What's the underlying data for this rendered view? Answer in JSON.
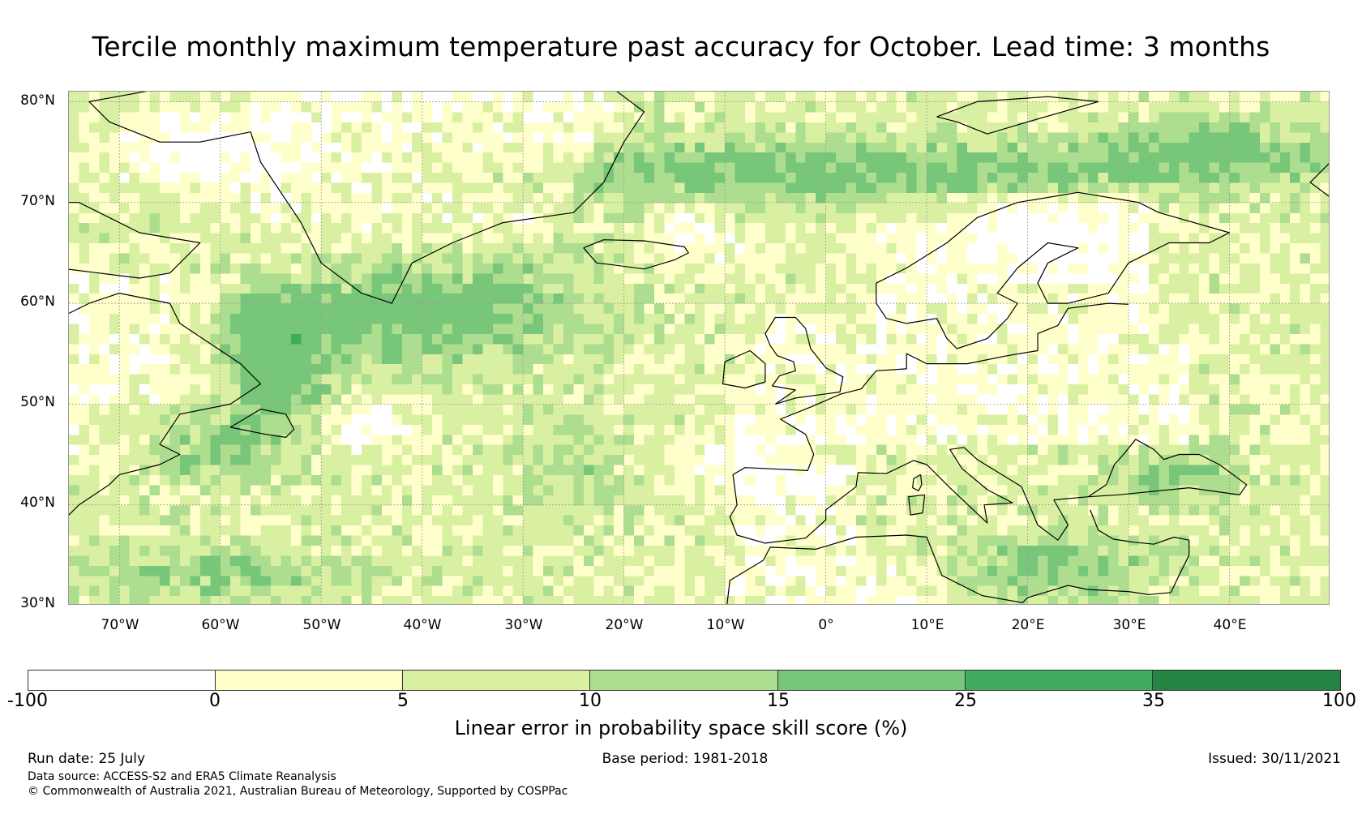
{
  "title": "Tercile monthly maximum temperature past accuracy for October. Lead time: 3 months",
  "map": {
    "lat_labels": [
      "80°N",
      "70°N",
      "60°N",
      "50°N",
      "40°N",
      "30°N"
    ],
    "lon_labels": [
      "70°W",
      "60°W",
      "50°W",
      "40°W",
      "30°W",
      "20°W",
      "10°W",
      "0°",
      "10°E",
      "20°E",
      "30°E",
      "40°E"
    ],
    "lon_range": [
      -75,
      50
    ],
    "lat_range": [
      30,
      81
    ],
    "ocean_color": "#ffffff",
    "grid_color": "#9a9a9a",
    "coast_color": "#000000"
  },
  "colorbar": {
    "ticks": [
      "-100",
      "0",
      "5",
      "10",
      "15",
      "25",
      "35",
      "100"
    ],
    "colors": [
      "#ffffff",
      "#ffffcc",
      "#d9f0a3",
      "#addd8e",
      "#78c679",
      "#41ab5d",
      "#238443"
    ],
    "label": "Linear error in probability space skill score (%)"
  },
  "footer": {
    "run_date": "Run date: 25 July",
    "base_period": "Base period: 1981-2018",
    "issued": "Issued: 30/11/2021",
    "data_source": "Data source: ACCESS-S2 and ERA5 Climate Reanalysis",
    "copyright": "© Commonwealth of Australia 2021, Australian Bureau of Meteorology, Supported by COSPPac"
  }
}
